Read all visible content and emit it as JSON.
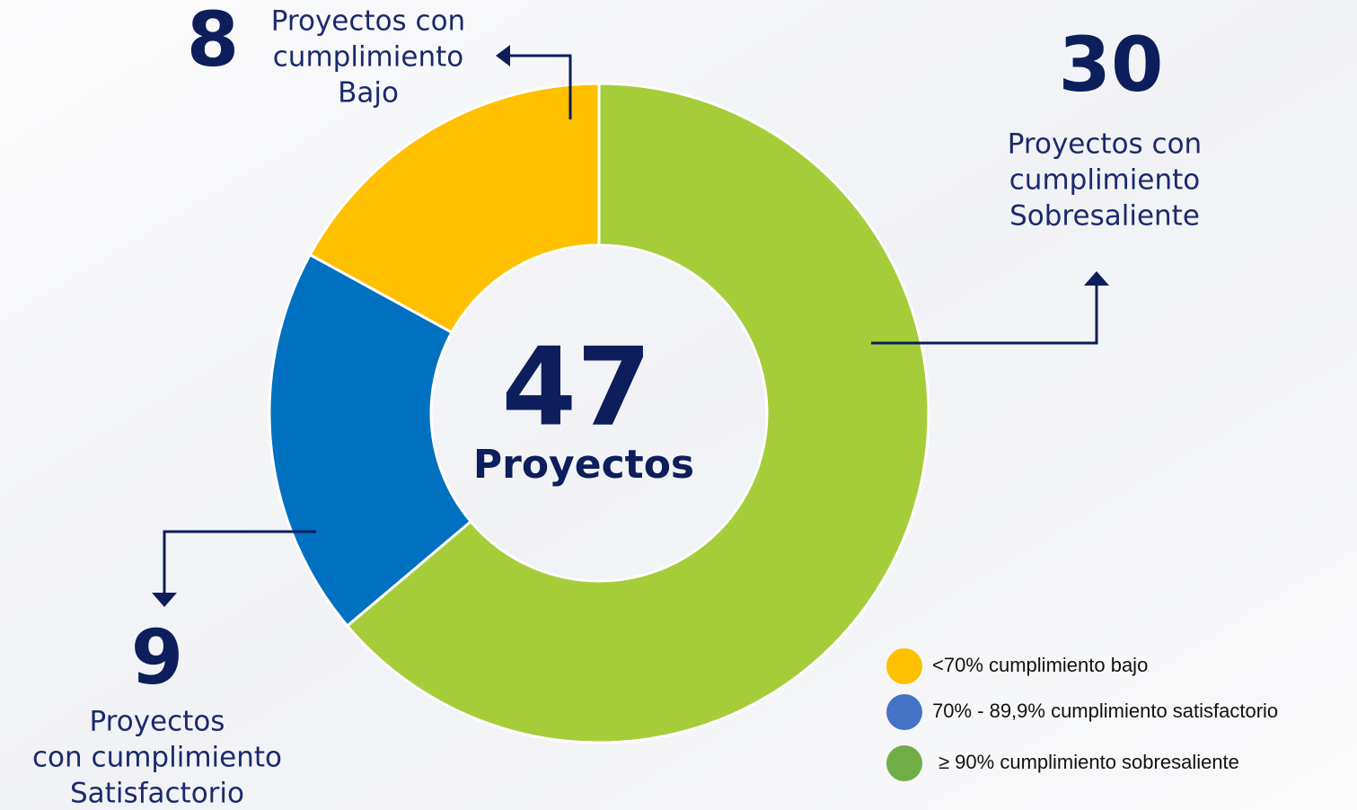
{
  "chart_data": {
    "type": "donut",
    "values": [
      30,
      9,
      8
    ],
    "colors": [
      "#a5cd39",
      "#0070c0",
      "#ffc000"
    ],
    "labels": [
      [
        "Proyectos con",
        "cumplimiento",
        "Sobresaliente"
      ],
      [
        "Proyectos",
        "con cumplimiento",
        "Satisfactorio"
      ],
      [
        "Proyectos con",
        "cumplimiento",
        "Bajo"
      ]
    ],
    "center_value": 47,
    "center_label": "Proyectos",
    "legend": [
      {
        "name": "<70% cumplimiento bajo",
        "color": "#ffc000"
      },
      {
        "name": "70% - 89,9% cumplimiento satisfactorio",
        "color": "#4472c4"
      },
      {
        "name": "≥ 90% cumplimiento sobresaliente",
        "color": "#70ad47"
      }
    ]
  }
}
